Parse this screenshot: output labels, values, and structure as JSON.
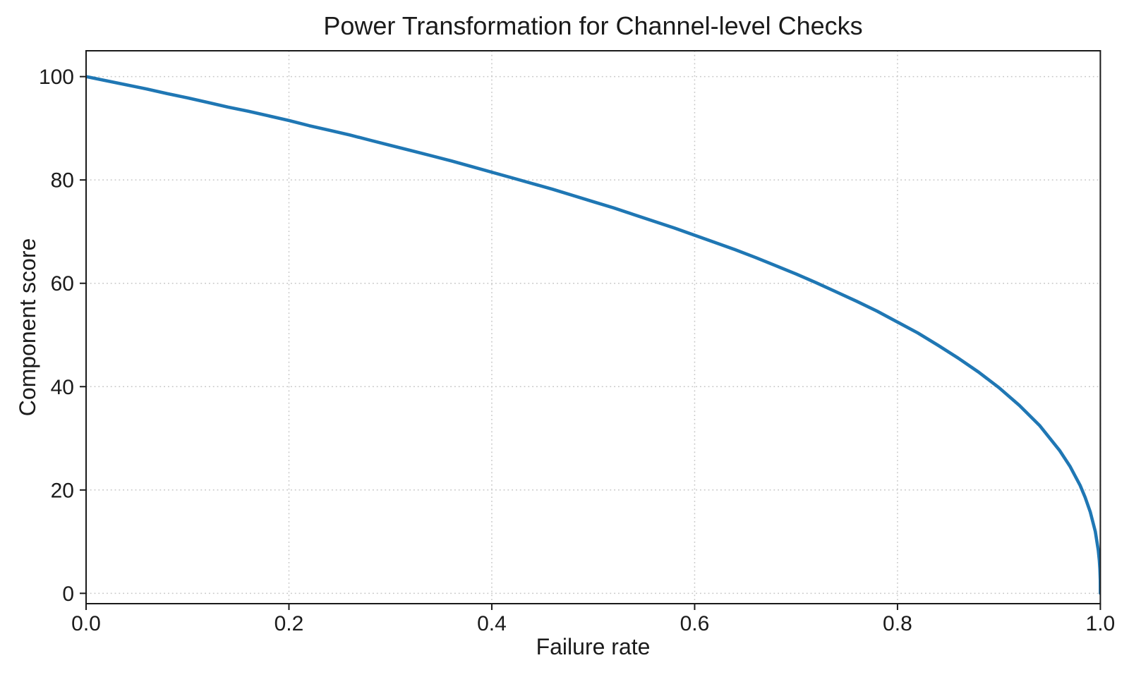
{
  "colors": {
    "line": "#1f77b4",
    "grid": "#c6c6c6",
    "spine": "#1a1a1a",
    "text": "#1b1b1b",
    "background": "#ffffff"
  },
  "chart_data": {
    "type": "line",
    "title": "Power Transformation for Channel-level Checks",
    "xlabel": "Failure rate",
    "ylabel": "Component score",
    "xlim": [
      0.0,
      1.0
    ],
    "ylim": [
      -2,
      105
    ],
    "xticks": [
      0.0,
      0.2,
      0.4,
      0.6,
      0.8,
      1.0
    ],
    "xtick_labels": [
      "0.0",
      "0.2",
      "0.4",
      "0.6",
      "0.8",
      "1.0"
    ],
    "yticks": [
      0,
      20,
      40,
      60,
      80,
      100
    ],
    "ytick_labels": [
      "0",
      "20",
      "40",
      "60",
      "80",
      "100"
    ],
    "grid": "dotted",
    "legend": "none",
    "function": "y = 100*(1-x)^0.4",
    "series": [
      {
        "name": "component-score-curve",
        "color": "#1f77b4",
        "line_width": 4.6,
        "points": [
          [
            0.0,
            100.0
          ],
          [
            0.02,
            99.2
          ],
          [
            0.04,
            98.4
          ],
          [
            0.06,
            97.6
          ],
          [
            0.08,
            96.7
          ],
          [
            0.1,
            95.9
          ],
          [
            0.12,
            95.0
          ],
          [
            0.14,
            94.1
          ],
          [
            0.16,
            93.3
          ],
          [
            0.18,
            92.4
          ],
          [
            0.2,
            91.5
          ],
          [
            0.22,
            90.5
          ],
          [
            0.24,
            89.6
          ],
          [
            0.26,
            88.7
          ],
          [
            0.28,
            87.7
          ],
          [
            0.3,
            86.7
          ],
          [
            0.32,
            85.7
          ],
          [
            0.34,
            84.7
          ],
          [
            0.36,
            83.7
          ],
          [
            0.38,
            82.6
          ],
          [
            0.4,
            81.5
          ],
          [
            0.42,
            80.4
          ],
          [
            0.44,
            79.3
          ],
          [
            0.46,
            78.2
          ],
          [
            0.48,
            77.0
          ],
          [
            0.5,
            75.8
          ],
          [
            0.52,
            74.6
          ],
          [
            0.54,
            73.3
          ],
          [
            0.56,
            72.0
          ],
          [
            0.58,
            70.7
          ],
          [
            0.6,
            69.3
          ],
          [
            0.62,
            67.9
          ],
          [
            0.64,
            66.5
          ],
          [
            0.66,
            65.0
          ],
          [
            0.68,
            63.4
          ],
          [
            0.7,
            61.8
          ],
          [
            0.72,
            60.1
          ],
          [
            0.74,
            58.3
          ],
          [
            0.76,
            56.5
          ],
          [
            0.78,
            54.6
          ],
          [
            0.8,
            52.5
          ],
          [
            0.82,
            50.4
          ],
          [
            0.84,
            48.0
          ],
          [
            0.86,
            45.5
          ],
          [
            0.88,
            42.8
          ],
          [
            0.9,
            39.8
          ],
          [
            0.92,
            36.4
          ],
          [
            0.94,
            32.5
          ],
          [
            0.96,
            27.6
          ],
          [
            0.97,
            24.6
          ],
          [
            0.98,
            20.9
          ],
          [
            0.985,
            18.6
          ],
          [
            0.99,
            15.8
          ],
          [
            0.995,
            12.0
          ],
          [
            0.998,
            8.3
          ],
          [
            0.999,
            6.3
          ],
          [
            0.9995,
            4.8
          ],
          [
            0.9999,
            2.5
          ],
          [
            1.0,
            0.0
          ]
        ]
      }
    ]
  }
}
